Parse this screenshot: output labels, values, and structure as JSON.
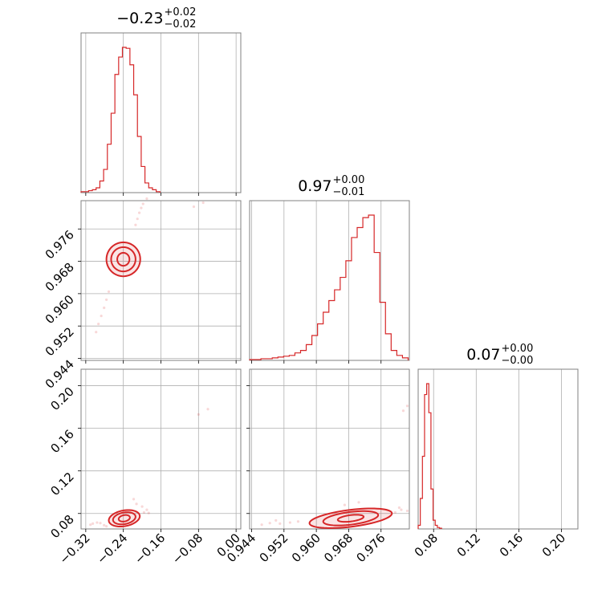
{
  "chart_data": {
    "type": "corner",
    "color": "#d62728",
    "parameters": [
      {
        "index": 0,
        "title": {
          "value": "−0.23",
          "upper": "+0.02",
          "lower": "−0.02"
        },
        "range": [
          -0.33,
          0.01
        ],
        "ticks": [
          -0.32,
          -0.24,
          -0.16,
          -0.08,
          0.0
        ],
        "tick_labels": [
          "−0.32",
          "−0.24",
          "−0.16",
          "−0.08",
          "0.00"
        ]
      },
      {
        "index": 1,
        "title": {
          "value": "0.97",
          "upper": "+0.00",
          "lower": "−0.01"
        },
        "range": [
          0.9435,
          0.983
        ],
        "ticks": [
          0.944,
          0.952,
          0.96,
          0.968,
          0.976
        ],
        "tick_labels": [
          "0.944",
          "0.952",
          "0.960",
          "0.968",
          "0.976"
        ]
      },
      {
        "index": 2,
        "title": {
          "value": "0.07",
          "upper": "+0.00",
          "lower": "−0.00"
        },
        "range": [
          0.0655,
          0.2155
        ],
        "ticks": [
          0.08,
          0.12,
          0.16,
          0.2
        ],
        "tick_labels": [
          "0.08",
          "0.12",
          "0.16",
          "0.20"
        ]
      }
    ],
    "histograms": [
      {
        "param": 0,
        "bin_edges": [
          -0.33,
          -0.322,
          -0.314,
          -0.306,
          -0.298,
          -0.29,
          -0.282,
          -0.274,
          -0.266,
          -0.258,
          -0.25,
          -0.242,
          -0.234,
          -0.226,
          -0.218,
          -0.21,
          -0.202,
          -0.194,
          -0.186,
          -0.178,
          -0.17,
          -0.162
        ],
        "counts": [
          1,
          1,
          2,
          3,
          5,
          12,
          24,
          50,
          82,
          122,
          140,
          150,
          149,
          132,
          101,
          58,
          27,
          10,
          5,
          3,
          1
        ]
      },
      {
        "param": 1,
        "bin_edges": [
          0.9435,
          0.9449,
          0.9463,
          0.9477,
          0.9491,
          0.9505,
          0.9519,
          0.9533,
          0.9547,
          0.9561,
          0.9575,
          0.9589,
          0.9603,
          0.9617,
          0.9631,
          0.9645,
          0.9659,
          0.9673,
          0.9687,
          0.9701,
          0.9715,
          0.9729,
          0.9743,
          0.9757,
          0.9771,
          0.9785,
          0.9799,
          0.9813,
          0.9827
        ],
        "counts": [
          1,
          1,
          2,
          2,
          3,
          4,
          5,
          6,
          9,
          12,
          19,
          30,
          44,
          58,
          72,
          85,
          100,
          120,
          148,
          160,
          172,
          175,
          130,
          70,
          32,
          12,
          6,
          3
        ]
      },
      {
        "param": 2,
        "bin_edges": [
          0.0655,
          0.0675,
          0.0695,
          0.0715,
          0.0735,
          0.0755,
          0.0775,
          0.0795,
          0.0815,
          0.0835,
          0.0855,
          0.0875
        ],
        "counts": [
          5,
          42,
          100,
          185,
          200,
          160,
          55,
          12,
          5,
          2,
          1
        ]
      }
    ],
    "pairs": [
      {
        "x_param": 0,
        "y_param": 1,
        "contours": [
          {
            "cx": -0.24,
            "cy": 0.9685,
            "rx": 0.013,
            "ry": 0.0016,
            "slope": 0.0004
          },
          {
            "cx": -0.24,
            "cy": 0.9685,
            "rx": 0.026,
            "ry": 0.003,
            "slope": 0.0004
          },
          {
            "cx": -0.24,
            "cy": 0.9685,
            "rx": 0.036,
            "ry": 0.0042,
            "slope": 0.0004
          }
        ],
        "points": [
          [
            -0.298,
            0.9505
          ],
          [
            -0.293,
            0.9525
          ],
          [
            -0.287,
            0.9545
          ],
          [
            -0.281,
            0.9565
          ],
          [
            -0.276,
            0.9585
          ],
          [
            -0.271,
            0.9605
          ],
          [
            -0.214,
            0.977
          ],
          [
            -0.21,
            0.9785
          ],
          [
            -0.206,
            0.98
          ],
          [
            -0.202,
            0.9812
          ],
          [
            -0.198,
            0.9822
          ],
          [
            -0.19,
            0.9835
          ],
          [
            -0.07,
            0.9825
          ],
          [
            -0.09,
            0.9815
          ]
        ]
      },
      {
        "x_param": 0,
        "y_param": 2,
        "contours": [
          {
            "cx": -0.238,
            "cy": 0.0755,
            "rx": 0.012,
            "ry": 0.003,
            "slope": 0.06
          },
          {
            "cx": -0.238,
            "cy": 0.0755,
            "rx": 0.024,
            "ry": 0.0055,
            "slope": 0.06
          },
          {
            "cx": -0.238,
            "cy": 0.0755,
            "rx": 0.033,
            "ry": 0.0075,
            "slope": 0.06
          }
        ],
        "points": [
          [
            -0.305,
            0.0705
          ],
          [
            -0.296,
            0.0715
          ],
          [
            -0.289,
            0.071
          ],
          [
            -0.281,
            0.069
          ],
          [
            -0.31,
            0.0695
          ],
          [
            -0.196,
            0.081
          ],
          [
            -0.19,
            0.0835
          ],
          [
            -0.2,
            0.0865
          ],
          [
            -0.218,
            0.0935
          ],
          [
            -0.212,
            0.089
          ],
          [
            -0.186,
            0.0805
          ],
          [
            -0.276,
            0.068
          ],
          [
            -0.06,
            0.178
          ],
          [
            -0.08,
            0.173
          ]
        ]
      },
      {
        "x_param": 1,
        "y_param": 2,
        "contours": [
          {
            "cx": 0.9685,
            "cy": 0.0755,
            "rx": 0.0032,
            "ry": 0.003,
            "slope": 0.45
          },
          {
            "cx": 0.9685,
            "cy": 0.0755,
            "rx": 0.0068,
            "ry": 0.006,
            "slope": 0.45
          },
          {
            "cx": 0.9685,
            "cy": 0.0755,
            "rx": 0.0102,
            "ry": 0.008,
            "slope": 0.45
          }
        ],
        "points": [
          [
            0.9485,
            0.071
          ],
          [
            0.951,
            0.0705
          ],
          [
            0.9535,
            0.0715
          ],
          [
            0.9555,
            0.0725
          ],
          [
            0.9465,
            0.0695
          ],
          [
            0.95,
            0.0735
          ],
          [
            0.9795,
            0.081
          ],
          [
            0.981,
            0.0835
          ],
          [
            0.9825,
            0.0825
          ],
          [
            0.9805,
            0.0855
          ],
          [
            0.9705,
            0.0905
          ],
          [
            0.967,
            0.088
          ],
          [
            0.9815,
            0.1765
          ],
          [
            0.9825,
            0.181
          ]
        ]
      }
    ]
  }
}
